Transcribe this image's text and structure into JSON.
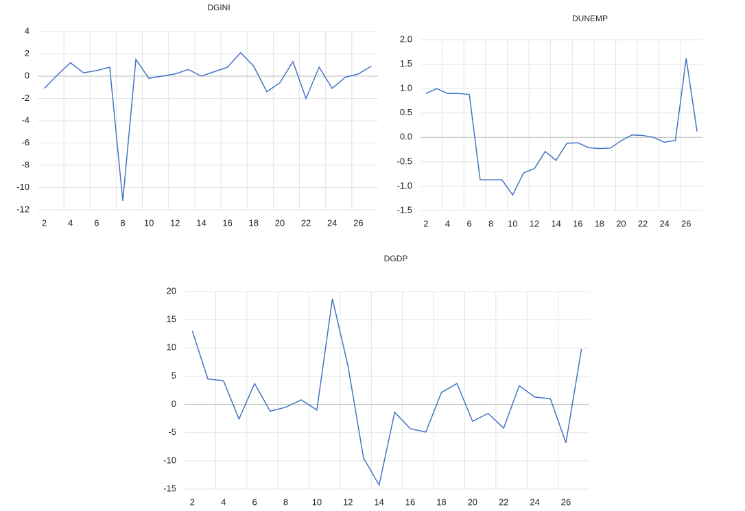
{
  "chart_data": [
    {
      "type": "line",
      "title": "DGINI",
      "categories": [
        2,
        null,
        4,
        null,
        6,
        null,
        8,
        null,
        10,
        null,
        12,
        null,
        14,
        null,
        16,
        null,
        18,
        null,
        20,
        null,
        22,
        null,
        24,
        null,
        26,
        null
      ],
      "series": [
        {
          "name": "DGINI",
          "color": "#4472c4",
          "values": [
            -1.1,
            0.1,
            1.2,
            0.3,
            0.5,
            0.8,
            -11.2,
            1.5,
            -0.2,
            0,
            0.2,
            0.6,
            0,
            0.4,
            0.8,
            2.1,
            0.9,
            -1.4,
            -0.6,
            1.3,
            -2,
            0.8,
            -1.1,
            -0.1,
            0.2,
            0.9
          ]
        }
      ],
      "ylim": [
        -12,
        4
      ],
      "yticks": [
        -12,
        -10,
        -8,
        -6,
        -4,
        -2,
        0,
        2,
        4
      ],
      "grid": true
    },
    {
      "type": "line",
      "title": "DUNEMP",
      "categories": [
        2,
        null,
        4,
        null,
        6,
        null,
        8,
        null,
        10,
        null,
        12,
        null,
        14,
        null,
        16,
        null,
        18,
        null,
        20,
        null,
        22,
        null,
        24,
        null,
        26,
        null
      ],
      "series": [
        {
          "name": "DUNEMP",
          "color": "#4472c4",
          "values": [
            0.9,
            1.0,
            0.9,
            0.9,
            0.88,
            -0.87,
            -0.87,
            -0.87,
            -1.18,
            -0.73,
            -0.64,
            -0.29,
            -0.47,
            -0.12,
            -0.11,
            -0.21,
            -0.23,
            -0.22,
            -0.07,
            0.05,
            0.04,
            0.0,
            -0.1,
            -0.06,
            1.62,
            0.12
          ]
        }
      ],
      "ylim": [
        -1.5,
        2.0
      ],
      "yticks": [
        -1.5,
        {
          "value": -1,
          "label": "-1.0"
        },
        -0.5,
        {
          "value": 0,
          "label": "0.0"
        },
        0.5,
        {
          "value": 1,
          "label": "1.0"
        },
        1.5,
        {
          "value": 2,
          "label": "2.0"
        }
      ],
      "grid": true
    },
    {
      "type": "line",
      "title": "DGDP",
      "categories": [
        2,
        null,
        4,
        null,
        6,
        null,
        8,
        null,
        10,
        null,
        12,
        null,
        14,
        null,
        16,
        null,
        18,
        null,
        20,
        null,
        22,
        null,
        24,
        null,
        26,
        null
      ],
      "series": [
        {
          "name": "DGDP",
          "color": "#4472c4",
          "values": [
            13,
            4.5,
            4.2,
            -2.6,
            3.7,
            -1.2,
            -0.5,
            0.8,
            -1,
            18.7,
            6.8,
            -9.5,
            -14.3,
            -1.4,
            -4.3,
            -4.9,
            2.1,
            3.7,
            -3,
            -1.6,
            -4.2,
            3.3,
            1.3,
            1,
            -6.8,
            9.8
          ]
        }
      ],
      "ylim": [
        -15,
        20
      ],
      "yticks": [
        -15,
        -10,
        -5,
        0,
        5,
        10,
        15,
        20
      ],
      "grid": true
    }
  ]
}
